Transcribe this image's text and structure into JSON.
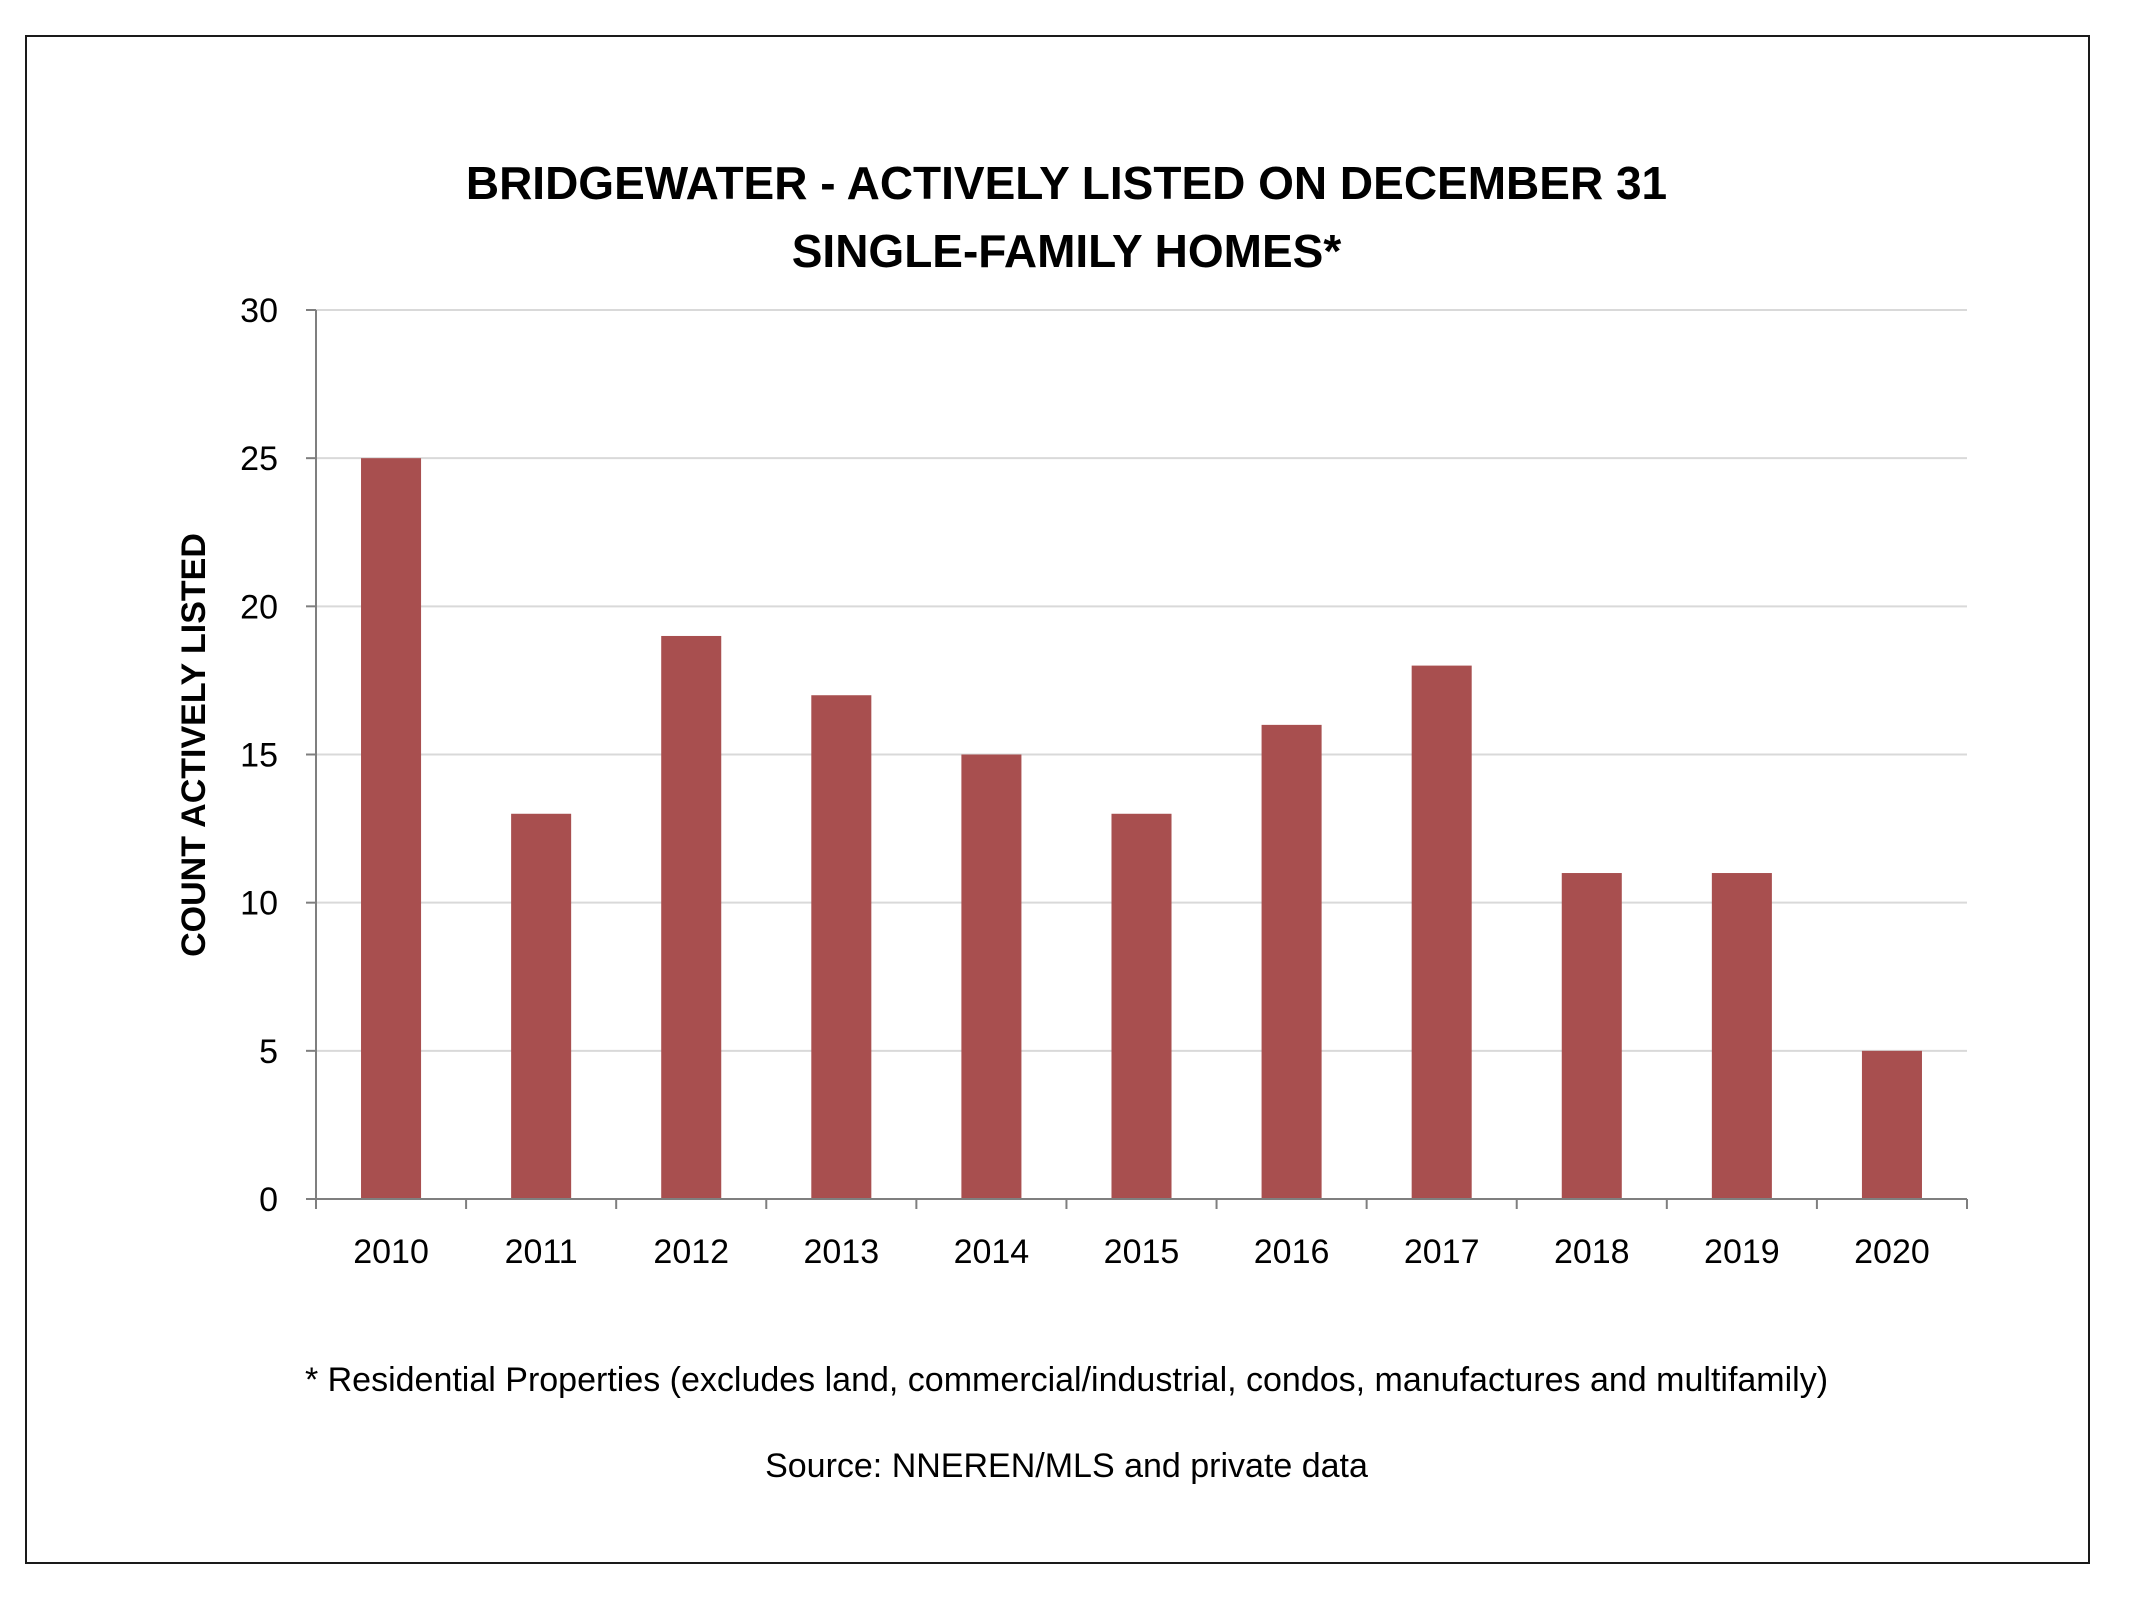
{
  "chart_data": {
    "type": "bar",
    "title": "BRIDGEWATER - ACTIVELY LISTED ON DECEMBER 31",
    "subtitle": "SINGLE-FAMILY HOMES*",
    "ylabel": "COUNT ACTIVELY LISTED",
    "xlabel": "",
    "categories": [
      "2010",
      "2011",
      "2012",
      "2013",
      "2014",
      "2015",
      "2016",
      "2017",
      "2018",
      "2019",
      "2020"
    ],
    "values": [
      25,
      13,
      19,
      17,
      15,
      13,
      16,
      18,
      11,
      11,
      5
    ],
    "ylim": [
      0,
      30
    ],
    "yticks": [
      "0",
      "5",
      "10",
      "15",
      "20",
      "25",
      "30"
    ],
    "grid": true,
    "legend": "none",
    "bar_color": "#A84F4F",
    "grid_color": "#D9D9D9",
    "axis_color": "#7F7F7F"
  },
  "footnote": "* Residential Properties (excludes land, commercial/industrial, condos, manufactures and multifamily)",
  "source": "Source: NNEREN/MLS and private data"
}
